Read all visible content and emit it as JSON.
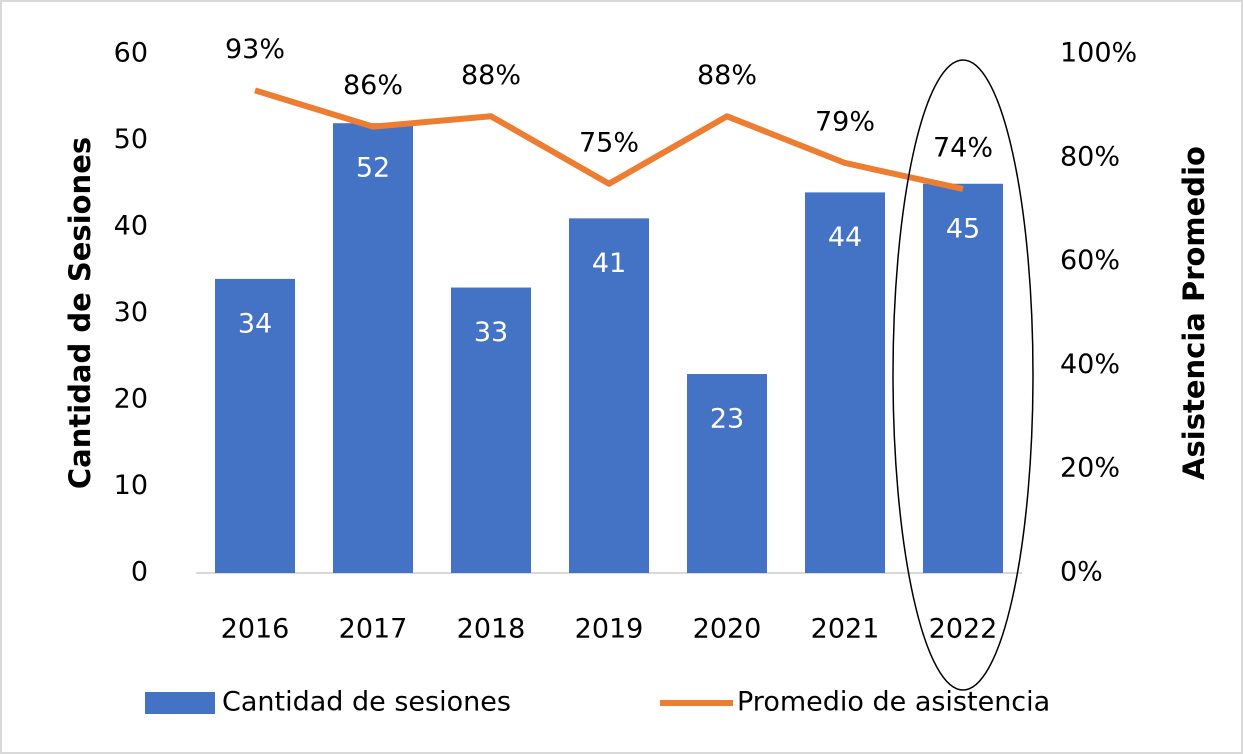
{
  "chart_data": {
    "type": "bar",
    "categories": [
      "2016",
      "2017",
      "2018",
      "2019",
      "2020",
      "2021",
      "2022"
    ],
    "ylabel": "Cantidad de Sesiones",
    "y2label": "Asistencia Promedio",
    "ylim": [
      0,
      60
    ],
    "yticks": [
      0,
      10,
      20,
      30,
      40,
      50,
      60
    ],
    "y2lim": [
      0,
      100
    ],
    "y2ticks": [
      {
        "value": 0,
        "label": "0%"
      },
      {
        "value": 20,
        "label": "20%"
      },
      {
        "value": 40,
        "label": "40%"
      },
      {
        "value": 60,
        "label": "60%"
      },
      {
        "value": 80,
        "label": "80%"
      },
      {
        "value": 100,
        "label": "100%"
      }
    ],
    "series": [
      {
        "name": "Cantidad de sesiones",
        "type": "bar",
        "color": "#4472c4",
        "values": [
          34,
          52,
          33,
          41,
          23,
          44,
          45
        ]
      },
      {
        "name": "Promedio de asistencia",
        "type": "line",
        "axis": "y2",
        "color": "#ed7d31",
        "values": [
          93,
          86,
          88,
          75,
          88,
          79,
          74
        ],
        "value_labels": [
          "93%",
          "86%",
          "88%",
          "75%",
          "88%",
          "79%",
          "74%"
        ]
      }
    ]
  }
}
